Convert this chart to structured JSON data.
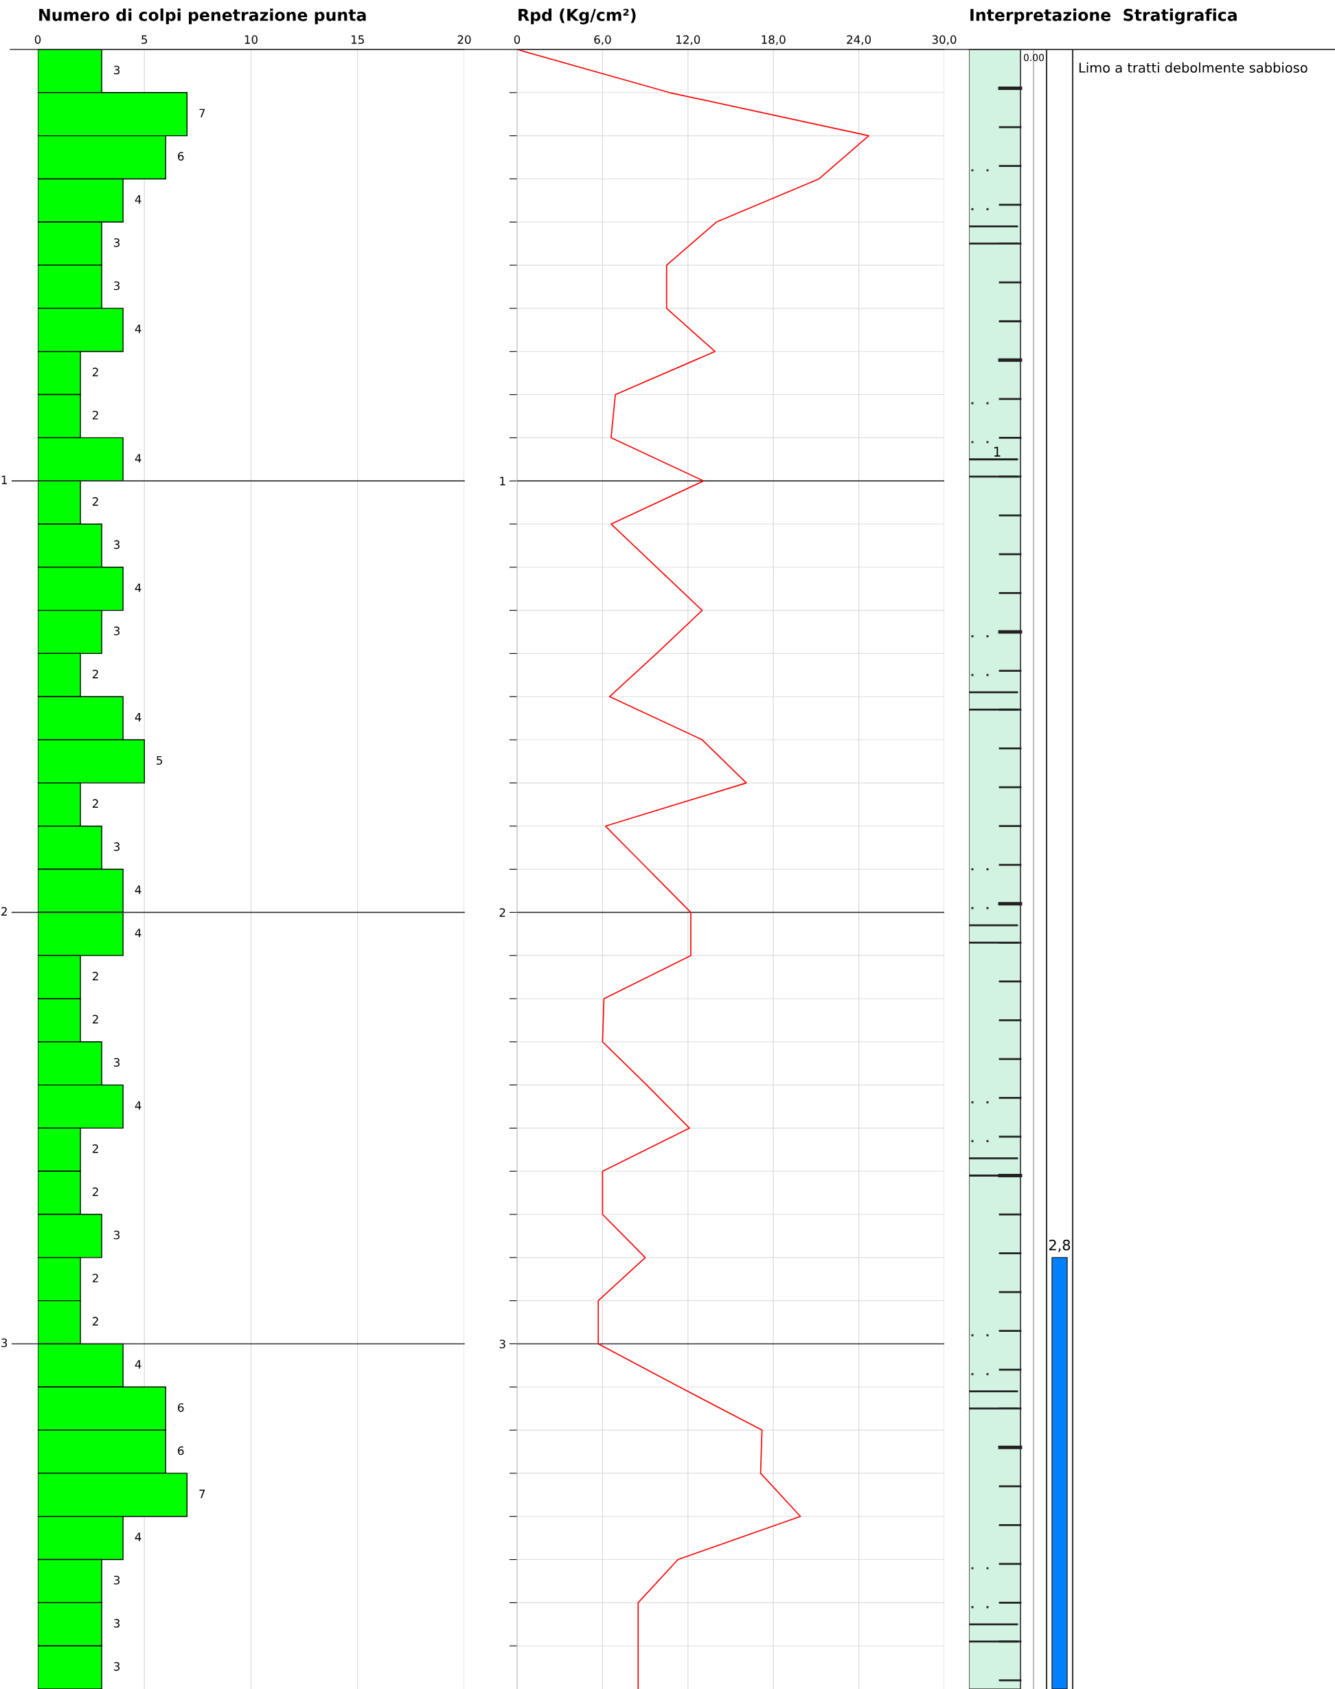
{
  "chart_data": [
    {
      "type": "bar",
      "orientation": "horizontal",
      "title": "Numero di colpi penetrazione punta",
      "categories": [
        null,
        null,
        null,
        null,
        null,
        null,
        null,
        null,
        null,
        null,
        null,
        null,
        null,
        null,
        null,
        null,
        null,
        null,
        null,
        null,
        null,
        null,
        null,
        null,
        null,
        null,
        null,
        null,
        null,
        null,
        null,
        null,
        null,
        null,
        null,
        null,
        null,
        null
      ],
      "values": [
        3,
        7,
        6,
        4,
        3,
        3,
        4,
        2,
        2,
        4,
        2,
        3,
        4,
        3,
        2,
        4,
        5,
        2,
        3,
        4,
        4,
        2,
        2,
        3,
        4,
        2,
        2,
        3,
        2,
        2,
        4,
        6,
        6,
        7,
        4,
        3,
        3,
        3
      ],
      "color": "#00ff00",
      "data_labels": true,
      "xlim": [
        0,
        20
      ],
      "xticks": [
        0,
        5,
        10,
        15,
        20
      ],
      "grid": "x",
      "annotations": [
        "1",
        "2",
        "3"
      ]
    },
    {
      "type": "line",
      "title": "Rpd (Kg/cm²)",
      "x": [
        0,
        10.7,
        24.7,
        21.2,
        14.0,
        10.5,
        10.5,
        13.9,
        6.9,
        6.6,
        13.1,
        6.6,
        9.8,
        13.0,
        9.8,
        6.5,
        13.0,
        16.1,
        6.2,
        9.2,
        12.2,
        12.2,
        6.1,
        6.0,
        9.1,
        12.1,
        6.0,
        6.0,
        9.0,
        5.7,
        5.7,
        11.4,
        17.2,
        17.1,
        19.9,
        11.3,
        8.5,
        8.5,
        8.5
      ],
      "values": [
        0,
        0.1,
        0.2,
        0.3,
        0.4,
        0.5,
        0.6,
        0.7,
        0.8,
        0.9,
        1.0,
        1.1,
        1.2,
        1.3,
        1.4,
        1.5,
        1.6,
        1.7,
        1.8,
        1.9,
        2.0,
        2.1,
        2.2,
        2.3,
        2.4,
        2.5,
        2.6,
        2.7,
        2.8,
        2.9,
        3.0,
        3.1,
        3.2,
        3.3,
        3.4,
        3.5,
        3.6,
        3.7,
        3.8
      ],
      "color": "#ff0000",
      "xlim": [
        0,
        30
      ],
      "xticks": [
        0,
        {
          "value": 6,
          "label": "6,0"
        },
        {
          "value": 12,
          "label": "12,0"
        },
        {
          "value": 18,
          "label": "18,0"
        },
        {
          "value": 24,
          "label": "24,0"
        },
        {
          "value": 30,
          "label": "30,0"
        }
      ],
      "ylim": [
        3.8,
        0
      ],
      "yticks": [
        {
          "value": 0.1,
          "label": null
        },
        {
          "value": 0.2,
          "label": null
        },
        {
          "value": 0.3,
          "label": null
        },
        {
          "value": 0.4,
          "label": null
        },
        {
          "value": 0.5,
          "label": null
        },
        {
          "value": 0.6,
          "label": null
        },
        {
          "value": 0.7,
          "label": null
        },
        {
          "value": 0.8,
          "label": null
        },
        {
          "value": 0.9,
          "label": null
        },
        1,
        {
          "value": 1.1,
          "label": null
        },
        {
          "value": 1.2,
          "label": null
        },
        {
          "value": 1.3,
          "label": null
        },
        {
          "value": 1.4,
          "label": null
        },
        {
          "value": 1.5,
          "label": null
        },
        {
          "value": 1.6,
          "label": null
        },
        {
          "value": 1.7,
          "label": null
        },
        {
          "value": 1.8,
          "label": null
        },
        {
          "value": 1.9,
          "label": null
        },
        2,
        {
          "value": 2.1,
          "label": null
        },
        {
          "value": 2.2,
          "label": null
        },
        {
          "value": 2.3,
          "label": null
        },
        {
          "value": 2.4,
          "label": null
        },
        {
          "value": 2.5,
          "label": null
        },
        {
          "value": 2.6,
          "label": null
        },
        {
          "value": 2.7,
          "label": null
        },
        {
          "value": 2.8,
          "label": null
        },
        {
          "value": 2.9,
          "label": null
        },
        3,
        {
          "value": 3.1,
          "label": null
        },
        {
          "value": 3.2,
          "label": null
        },
        {
          "value": 3.3,
          "label": null
        },
        {
          "value": 3.4,
          "label": null
        },
        {
          "value": 3.5,
          "label": null
        },
        {
          "value": 3.6,
          "label": null
        },
        {
          "value": 3.7,
          "label": null
        }
      ],
      "grid": true,
      "marker": "none",
      "line_style": "solid"
    },
    {
      "type": "other",
      "title": "Interpretazione  Stratigrafica",
      "annotations": [
        "0.00",
        "1",
        "Limo a tratti debolmente sabbioso",
        "2,8"
      ]
    }
  ]
}
